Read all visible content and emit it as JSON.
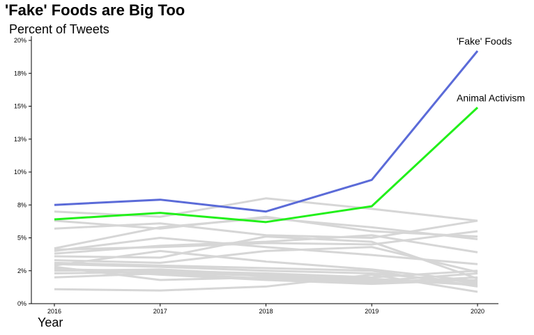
{
  "chart_data": {
    "type": "line",
    "title": "'Fake' Foods are Big Too",
    "ylabel": "Percent of Tweets",
    "xlabel": "Year",
    "x": [
      2016,
      2017,
      2018,
      2019,
      2020
    ],
    "ylim": [
      0,
      20
    ],
    "yticks": [
      0,
      2.5,
      5,
      7.5,
      10,
      12.5,
      15,
      17.5,
      20
    ],
    "ytick_labels": [
      "0%",
      "2%",
      "5%",
      "8%",
      "10%",
      "13%",
      "15%",
      "18%",
      "20%"
    ],
    "grid": false,
    "highlight_series": [
      {
        "name": "'Fake' Foods",
        "color": "#5b6bd8",
        "values": [
          7.5,
          7.9,
          7.0,
          9.4,
          19.2
        ]
      },
      {
        "name": "Animal Activism",
        "color": "#22f01a",
        "values": [
          6.4,
          6.9,
          6.2,
          7.4,
          14.9
        ]
      }
    ],
    "background_series_color": "#d6d6d6",
    "background_series": [
      {
        "values": [
          7.0,
          6.6,
          8.0,
          7.2,
          6.3
        ]
      },
      {
        "values": [
          6.3,
          5.7,
          6.6,
          5.5,
          5.1
        ]
      },
      {
        "values": [
          5.7,
          6.1,
          5.2,
          5.0,
          6.3
        ]
      },
      {
        "values": [
          4.2,
          5.8,
          6.5,
          5.8,
          4.9
        ]
      },
      {
        "values": [
          4.1,
          4.3,
          4.6,
          4.5,
          5.5
        ]
      },
      {
        "values": [
          3.8,
          4.4,
          4.7,
          5.2,
          3.9
        ]
      },
      {
        "values": [
          4.0,
          5.0,
          4.3,
          3.7,
          3.0
        ]
      },
      {
        "values": [
          3.6,
          3.5,
          5.1,
          4.7,
          1.9
        ]
      },
      {
        "values": [
          3.3,
          3.1,
          4.0,
          4.3,
          2.4
        ]
      },
      {
        "values": [
          2.9,
          4.0,
          3.2,
          2.6,
          1.7
        ]
      },
      {
        "values": [
          3.0,
          2.8,
          2.5,
          2.3,
          1.6
        ]
      },
      {
        "values": [
          2.6,
          2.5,
          2.3,
          2.0,
          2.5
        ]
      },
      {
        "values": [
          2.5,
          2.6,
          2.2,
          1.9,
          1.4
        ]
      },
      {
        "values": [
          2.3,
          2.4,
          2.1,
          1.7,
          2.3
        ]
      },
      {
        "values": [
          2.0,
          2.3,
          1.9,
          1.6,
          2.0
        ]
      },
      {
        "values": [
          2.8,
          1.8,
          2.0,
          1.8,
          1.5
        ]
      },
      {
        "values": [
          2.7,
          2.2,
          1.8,
          1.5,
          1.8
        ]
      },
      {
        "values": [
          1.1,
          1.0,
          1.3,
          2.2,
          0.9
        ]
      },
      {
        "values": [
          3.1,
          2.9,
          2.7,
          2.5,
          1.3
        ]
      }
    ]
  }
}
